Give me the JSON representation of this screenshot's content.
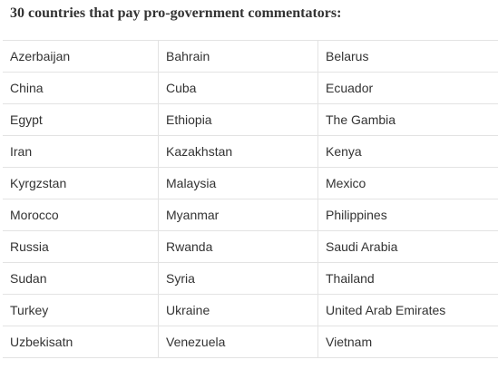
{
  "header": {
    "title": "30 countries that pay pro-government commentators:"
  },
  "table": {
    "rows": [
      [
        "Azerbaijan",
        "Bahrain",
        "Belarus"
      ],
      [
        "China",
        "Cuba",
        "Ecuador"
      ],
      [
        "Egypt",
        "Ethiopia",
        "The Gambia"
      ],
      [
        "Iran",
        "Kazakhstan",
        "Kenya"
      ],
      [
        "Kyrgzstan",
        "Malaysia",
        "Mexico"
      ],
      [
        "Morocco",
        "Myanmar",
        "Philippines"
      ],
      [
        "Russia",
        "Rwanda",
        "Saudi Arabia"
      ],
      [
        "Sudan",
        "Syria",
        "Thailand"
      ],
      [
        "Turkey",
        "Ukraine",
        "United Arab Emirates"
      ],
      [
        "Uzbekisatn",
        "Venezuela",
        "Vietnam"
      ]
    ]
  }
}
